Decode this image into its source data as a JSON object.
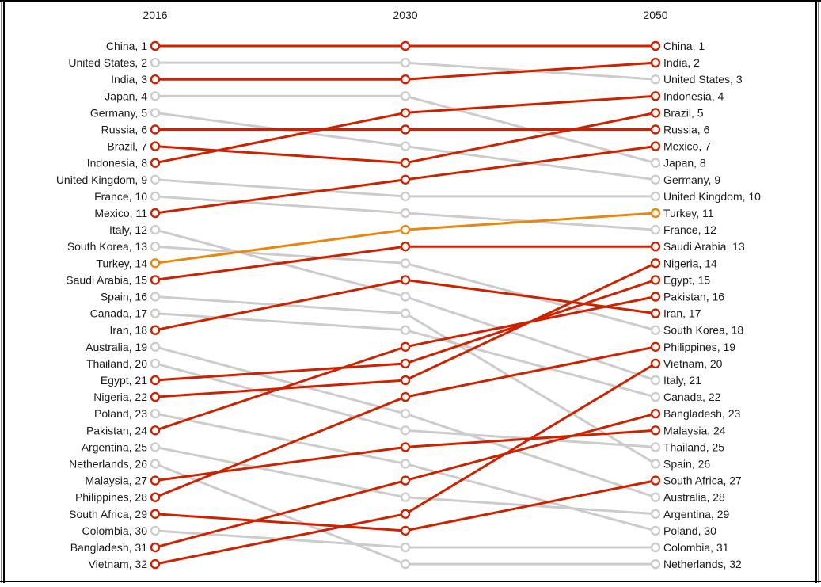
{
  "chart_data": {
    "type": "line",
    "subtype": "slope",
    "columns": [
      "2016",
      "2030",
      "2050"
    ],
    "colors": {
      "highlight": "#cc2200",
      "accent": "#e8870e",
      "muted": "#cccccc",
      "frame": "#000000"
    },
    "series": [
      {
        "name": "China",
        "ranks": [
          1,
          1,
          1
        ],
        "group": "highlight"
      },
      {
        "name": "United States",
        "ranks": [
          2,
          2,
          3
        ],
        "group": "muted"
      },
      {
        "name": "India",
        "ranks": [
          3,
          3,
          2
        ],
        "group": "highlight"
      },
      {
        "name": "Japan",
        "ranks": [
          4,
          4,
          8
        ],
        "group": "muted"
      },
      {
        "name": "Germany",
        "ranks": [
          5,
          7,
          9
        ],
        "group": "muted"
      },
      {
        "name": "Russia",
        "ranks": [
          6,
          6,
          6
        ],
        "group": "highlight"
      },
      {
        "name": "Brazil",
        "ranks": [
          7,
          8,
          5
        ],
        "group": "highlight"
      },
      {
        "name": "Indonesia",
        "ranks": [
          8,
          5,
          4
        ],
        "group": "highlight"
      },
      {
        "name": "United Kingdom",
        "ranks": [
          9,
          10,
          10
        ],
        "group": "muted"
      },
      {
        "name": "France",
        "ranks": [
          10,
          11,
          12
        ],
        "group": "muted"
      },
      {
        "name": "Mexico",
        "ranks": [
          11,
          9,
          7
        ],
        "group": "highlight"
      },
      {
        "name": "Italy",
        "ranks": [
          12,
          16,
          21
        ],
        "group": "muted"
      },
      {
        "name": "South Korea",
        "ranks": [
          13,
          14,
          18
        ],
        "group": "muted"
      },
      {
        "name": "Turkey",
        "ranks": [
          14,
          12,
          11
        ],
        "group": "accent"
      },
      {
        "name": "Saudi Arabia",
        "ranks": [
          15,
          13,
          13
        ],
        "group": "highlight"
      },
      {
        "name": "Spain",
        "ranks": [
          16,
          17,
          26
        ],
        "group": "muted"
      },
      {
        "name": "Canada",
        "ranks": [
          17,
          18,
          22
        ],
        "group": "muted"
      },
      {
        "name": "Iran",
        "ranks": [
          18,
          15,
          17
        ],
        "group": "highlight"
      },
      {
        "name": "Australia",
        "ranks": [
          19,
          23,
          28
        ],
        "group": "muted"
      },
      {
        "name": "Thailand",
        "ranks": [
          20,
          24,
          25
        ],
        "group": "muted"
      },
      {
        "name": "Egypt",
        "ranks": [
          21,
          20,
          15
        ],
        "group": "highlight"
      },
      {
        "name": "Nigeria",
        "ranks": [
          22,
          21,
          14
        ],
        "group": "highlight"
      },
      {
        "name": "Poland",
        "ranks": [
          23,
          26,
          30
        ],
        "group": "muted"
      },
      {
        "name": "Pakistan",
        "ranks": [
          24,
          19,
          16
        ],
        "group": "highlight"
      },
      {
        "name": "Argentina",
        "ranks": [
          25,
          28,
          29
        ],
        "group": "muted"
      },
      {
        "name": "Netherlands",
        "ranks": [
          26,
          32,
          32
        ],
        "group": "muted"
      },
      {
        "name": "Malaysia",
        "ranks": [
          27,
          25,
          24
        ],
        "group": "highlight"
      },
      {
        "name": "Philippines",
        "ranks": [
          28,
          22,
          19
        ],
        "group": "highlight"
      },
      {
        "name": "South Africa",
        "ranks": [
          29,
          30,
          27
        ],
        "group": "highlight"
      },
      {
        "name": "Colombia",
        "ranks": [
          30,
          31,
          31
        ],
        "group": "muted"
      },
      {
        "name": "Bangladesh",
        "ranks": [
          31,
          27,
          23
        ],
        "group": "highlight"
      },
      {
        "name": "Vietnam",
        "ranks": [
          32,
          29,
          20
        ],
        "group": "highlight"
      }
    ]
  }
}
